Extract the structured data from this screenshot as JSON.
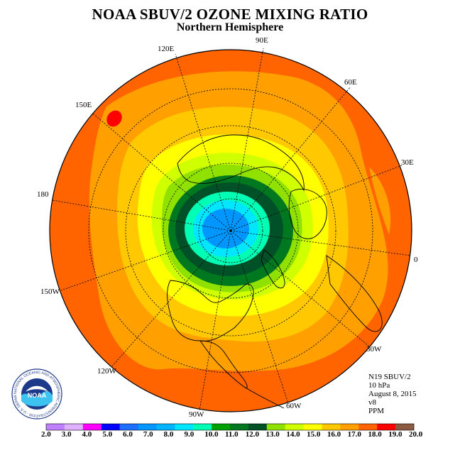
{
  "title": "NOAA SBUV/2 OZONE MIXING RATIO",
  "subtitle": "Northern Hemisphere",
  "longitude_labels": [
    "90E",
    "60E",
    "30E",
    "0",
    "30W",
    "60W",
    "90W",
    "120W",
    "150W",
    "180",
    "150E",
    "120E"
  ],
  "info": {
    "satellite": "N19 SBUV/2",
    "pressure_level": "10 hPa",
    "date": "August 8, 2015",
    "version": "v8",
    "units": "PPM"
  },
  "logo": {
    "name": "NOAA",
    "ring_text": "NATIONAL OCEANIC AND ATMOSPHERIC ADMINISTRATION · U.S. DEPARTMENT OF COMMERCE"
  },
  "colorbar": {
    "ticks": [
      "2.0",
      "3.0",
      "4.0",
      "5.0",
      "6.0",
      "7.0",
      "8.0",
      "9.0",
      "10.0",
      "11.0",
      "12.0",
      "13.0",
      "14.0",
      "15.0",
      "16.0",
      "17.0",
      "18.0",
      "19.0",
      "20.0"
    ],
    "colors": [
      "#c080ff",
      "#e0b0ff",
      "#ff00ff",
      "#0000ff",
      "#1e6eff",
      "#0096ff",
      "#00b4ff",
      "#00e6ff",
      "#00ffb4",
      "#00a000",
      "#007820",
      "#005028",
      "#90e000",
      "#d0ff00",
      "#ffff00",
      "#ffc800",
      "#ffa000",
      "#ff6400",
      "#ff0000",
      "#8b5a40"
    ]
  },
  "map_colors": {
    "outer": "#ff6400",
    "ring_orange": "#ffa000",
    "ring_light_orange": "#ffc800",
    "ring_yellow": "#ffff00",
    "ring_yellow_green": "#d0ff00",
    "ring_green": "#90e000",
    "ring_dark_green": "#007820",
    "ring_darkest_green": "#005028",
    "ring_cyan": "#00ffb4",
    "ring_light_blue": "#00e6ff",
    "core_blue": "#0096ff",
    "hotspot_red": "#ff0000"
  }
}
